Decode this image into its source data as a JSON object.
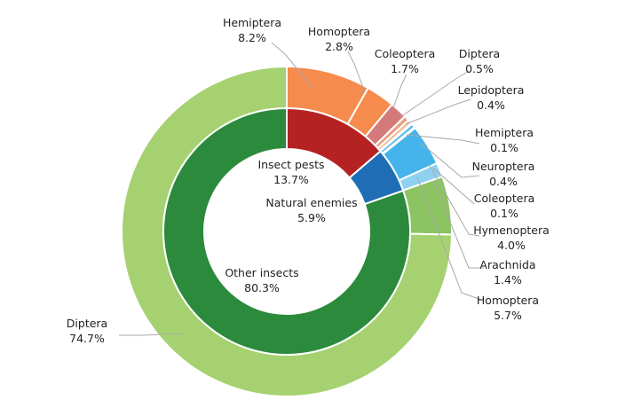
{
  "chart_data": {
    "type": "pie",
    "inner_ring": [
      {
        "name": "Insect pests",
        "value": "13.7%",
        "pct": 13.7,
        "color": "#b52222"
      },
      {
        "name": "Natural enemies",
        "value": "5.9%",
        "pct": 5.9,
        "color": "#1f6db5"
      },
      {
        "name": "Other insects",
        "value": "80.3%",
        "pct": 80.3,
        "color": "#2b8a3c"
      }
    ],
    "outer_ring": [
      {
        "name": "Hemiptera",
        "value": "8.2%",
        "pct": 8.2,
        "color": "#f58b4c"
      },
      {
        "name": "Homoptera",
        "value": "2.8%",
        "pct": 2.8,
        "color": "#f58b4c"
      },
      {
        "name": "Coleoptera",
        "value": "1.7%",
        "pct": 1.7,
        "color": "#d57a7a"
      },
      {
        "name": "Diptera",
        "value": "0.5%",
        "pct": 0.5,
        "color": "#e9a085"
      },
      {
        "name": "Lepidoptera",
        "value": "0.4%",
        "pct": 0.4,
        "color": "#f3b88f"
      },
      {
        "name": "Hemiptera",
        "value": "0.1%",
        "pct": 0.1,
        "color": "#7fc9ee"
      },
      {
        "name": "Neuroptera",
        "value": "0.4%",
        "pct": 0.4,
        "color": "#5bbcec"
      },
      {
        "name": "Coleoptera",
        "value": "0.1%",
        "pct": 0.1,
        "color": "#7fc9ee"
      },
      {
        "name": "Hymenoptera",
        "value": "4.0%",
        "pct": 4.0,
        "color": "#45b4ea"
      },
      {
        "name": "Arachnida",
        "value": "1.4%",
        "pct": 1.4,
        "color": "#8fd1f1"
      },
      {
        "name": "Homoptera",
        "value": "5.7%",
        "pct": 5.7,
        "color": "#8cc462"
      },
      {
        "name": "Diptera",
        "value": "74.7%",
        "pct": 74.7,
        "color": "#a6d170"
      }
    ]
  }
}
